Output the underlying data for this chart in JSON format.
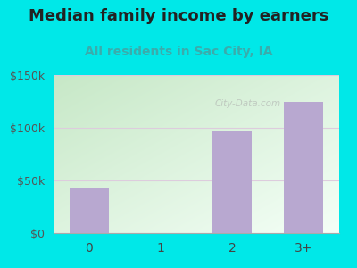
{
  "title": "Median family income by earners",
  "subtitle": "All residents in Sac City, IA",
  "categories": [
    "0",
    "1",
    "2",
    "3+"
  ],
  "values": [
    42000,
    0,
    97000,
    125000
  ],
  "bar_color": "#b8a8d0",
  "title_fontsize": 13,
  "subtitle_fontsize": 10,
  "subtitle_color": "#3aacac",
  "title_color": "#222222",
  "bg_color": "#00e8e8",
  "ylim": [
    0,
    150000
  ],
  "yticks": [
    0,
    50000,
    100000,
    150000
  ],
  "ytick_labels": [
    "$0",
    "$50k",
    "$100k",
    "$150k"
  ],
  "watermark": "City-Data.com",
  "grid_color": "#ddccdd",
  "plot_bg_topleft": "#c8e8c8",
  "plot_bg_bottomright": "#f0fff8"
}
